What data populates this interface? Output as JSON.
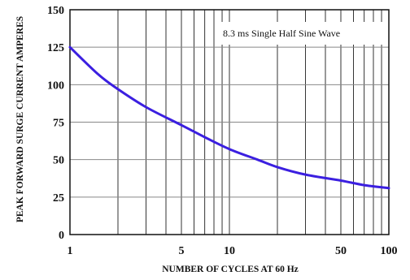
{
  "chart_data": {
    "type": "line",
    "xlabel": "NUMBER OF CYCLES AT 60 Hz",
    "ylabel": "PEAK FORWARD SURGE CURRENT AMPERES",
    "x_scale": "log",
    "xlim": [
      1,
      100
    ],
    "ylim": [
      0,
      150
    ],
    "x_tick_labels": [
      "1",
      "5",
      "10",
      "50",
      "100"
    ],
    "y_tick_labels": [
      "0",
      "25",
      "50",
      "75",
      "100",
      "125",
      "150"
    ],
    "annotation": "8.3 ms Single Half Sine Wave",
    "grid": true,
    "series": [
      {
        "color": "#3b1fe0",
        "x": [
          1,
          1.5,
          2,
          3,
          5,
          7,
          10,
          15,
          20,
          30,
          50,
          70,
          100
        ],
        "y": [
          125,
          107,
          97,
          85,
          73,
          65,
          57,
          50,
          45,
          40,
          36,
          33,
          31
        ]
      }
    ]
  }
}
